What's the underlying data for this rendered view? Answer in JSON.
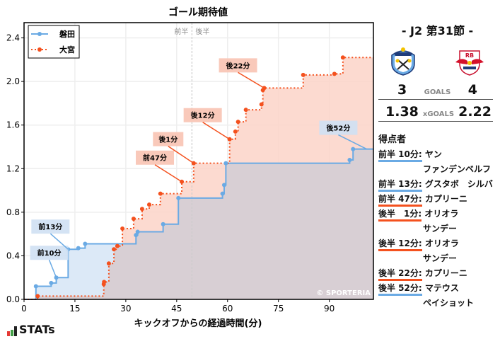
{
  "chart_data": {
    "type": "line",
    "title": "ゴール期待値",
    "xlabel": "キックオフからの経過時間(分)",
    "ylabel": "",
    "xlim": [
      0,
      103
    ],
    "ylim": [
      0,
      2.54
    ],
    "xticks": [
      0,
      15,
      30,
      45,
      60,
      75,
      90
    ],
    "yticks": [
      0.0,
      0.4,
      0.8,
      1.2,
      1.6,
      2.0,
      2.4
    ],
    "grid": true,
    "legend_position": "upper left",
    "half_divider": {
      "x": 49.5,
      "labels": [
        "前半",
        "後半"
      ]
    },
    "watermark": "© SPORTERIA",
    "series": [
      {
        "name": "磐田",
        "color": "#6aaae4",
        "style": "solid-step",
        "points": [
          [
            0,
            0
          ],
          [
            3.5,
            0.12
          ],
          [
            8,
            0.15
          ],
          [
            9.5,
            0.2
          ],
          [
            13,
            0.46
          ],
          [
            16,
            0.47
          ],
          [
            18,
            0.51
          ],
          [
            33,
            0.59
          ],
          [
            33.5,
            0.62
          ],
          [
            41,
            0.69
          ],
          [
            45.5,
            0.93
          ],
          [
            58.5,
            0.97
          ],
          [
            59,
            1.05
          ],
          [
            59.5,
            1.25
          ],
          [
            96,
            1.28
          ],
          [
            97,
            1.38
          ],
          [
            103,
            1.38
          ]
        ]
      },
      {
        "name": "大宮",
        "color": "#f4511e",
        "style": "dotted-step",
        "points": [
          [
            0,
            0
          ],
          [
            4,
            0.03
          ],
          [
            23.5,
            0.14
          ],
          [
            23.6,
            0.16
          ],
          [
            25,
            0.33
          ],
          [
            26.5,
            0.46
          ],
          [
            27.5,
            0.49
          ],
          [
            29,
            0.65
          ],
          [
            32.3,
            0.74
          ],
          [
            34.8,
            0.83
          ],
          [
            36.9,
            0.87
          ],
          [
            40.2,
            0.97
          ],
          [
            46.5,
            1.08
          ],
          [
            50,
            1.25
          ],
          [
            60.6,
            1.47
          ],
          [
            62.3,
            1.54
          ],
          [
            63.1,
            1.63
          ],
          [
            65.4,
            1.74
          ],
          [
            70,
            1.79
          ],
          [
            70.4,
            1.92
          ],
          [
            70.8,
            1.94
          ],
          [
            82.3,
            2.06
          ],
          [
            91.5,
            2.07
          ],
          [
            94,
            2.22
          ],
          [
            103,
            2.22
          ]
        ]
      }
    ],
    "annotations": [
      {
        "text": "前10分",
        "team": "磐田",
        "x": 9.5,
        "y": 0.2
      },
      {
        "text": "前13分",
        "team": "磐田",
        "x": 13,
        "y": 0.46
      },
      {
        "text": "前47分",
        "team": "大宮",
        "x": 46.5,
        "y": 1.08
      },
      {
        "text": "後1分",
        "team": "大宮",
        "x": 50,
        "y": 1.25
      },
      {
        "text": "後12分",
        "team": "大宮",
        "x": 60.6,
        "y": 1.47
      },
      {
        "text": "後22分",
        "team": "大宮",
        "x": 70.8,
        "y": 1.94
      },
      {
        "text": "後52分",
        "team": "磐田",
        "x": 101,
        "y": 1.38
      }
    ]
  },
  "match": {
    "round": "- J2 第31節 -",
    "home": {
      "name": "磐田",
      "goals": "3",
      "xg": "1.38",
      "color": "#6aaae4"
    },
    "away": {
      "name": "大宮",
      "goals": "4",
      "xg": "2.22",
      "color": "#f4511e"
    },
    "goals_label": "GOALS",
    "xg_label": "xGOALS"
  },
  "scorers": {
    "title": "得点者",
    "items": [
      {
        "time": "前半 10分:",
        "name": "ヤン",
        "name2": "ファンデンベルフ",
        "team": "home"
      },
      {
        "time": "前半 13分:",
        "name": "グスタボ　シルバ",
        "name2": "",
        "team": "home"
      },
      {
        "time": "前半 47分:",
        "name": "カプリーニ",
        "name2": "",
        "team": "away"
      },
      {
        "time": "後半　1分:",
        "name": "オリオラ",
        "name2": "サンデー",
        "team": "away"
      },
      {
        "time": "後半 12分:",
        "name": "オリオラ",
        "name2": "サンデー",
        "team": "away"
      },
      {
        "time": "後半 22分:",
        "name": "カプリーニ",
        "name2": "",
        "team": "away"
      },
      {
        "time": "後半 52分:",
        "name": "マテウス",
        "name2": "ペイショット",
        "team": "home"
      }
    ]
  },
  "brand": {
    "logo_text": "STATs"
  }
}
